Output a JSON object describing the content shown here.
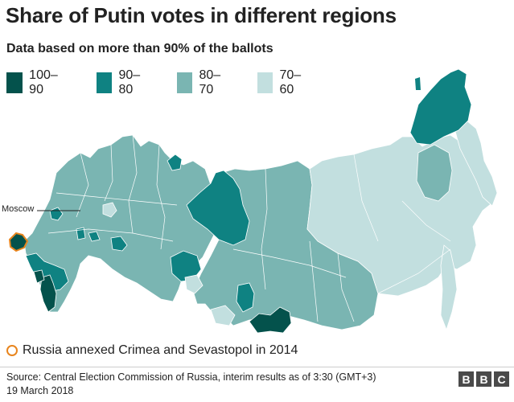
{
  "title": "Share of Putin votes in different regions",
  "subtitle": "Data based on more than 90% of the ballots",
  "legend": [
    {
      "label": "100–90",
      "color": "#04524c"
    },
    {
      "label": "90–80",
      "color": "#0f8282"
    },
    {
      "label": "80–70",
      "color": "#7ab5b2"
    },
    {
      "label": "70–60",
      "color": "#c2dfdf"
    }
  ],
  "map": {
    "moscow_label": "Moscow",
    "annex_note": "Russia annexed Crimea and Sevastopol in 2014",
    "annex_color": "#e8851e"
  },
  "footer": {
    "source_line1": "Source: Central Election Commission of Russia, interim results as of 3:30 (GMT+3)",
    "source_line2": "19 March 2018",
    "logo_letters": [
      "B",
      "B",
      "C"
    ]
  }
}
